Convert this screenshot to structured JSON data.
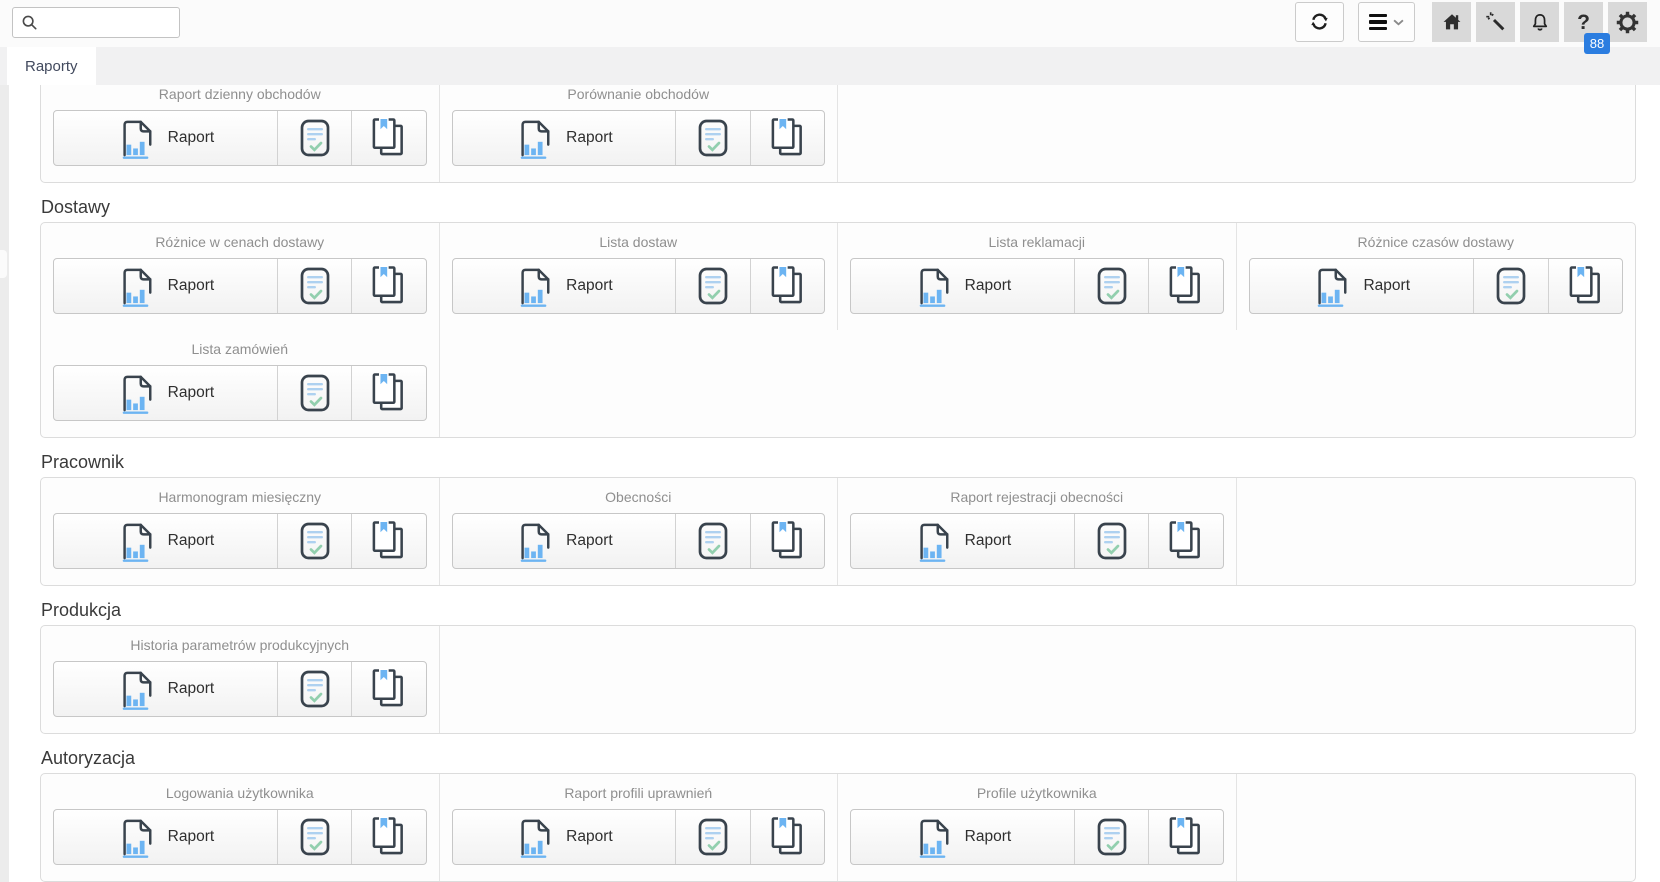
{
  "topbar": {
    "search_placeholder": "",
    "search_value": "",
    "help_badge": "88",
    "buttons": [
      {
        "name": "refresh",
        "icon": "refresh-icon"
      },
      {
        "name": "menu",
        "icon": "hamburger-icon",
        "secondary_icon": "chevron-down-icon"
      },
      {
        "name": "home",
        "icon": "home-icon"
      },
      {
        "name": "magic-wand",
        "icon": "magic-wand-icon"
      },
      {
        "name": "notifications",
        "icon": "bell-icon"
      },
      {
        "name": "help",
        "icon": "question-mark-icon",
        "badge": "88"
      },
      {
        "name": "settings",
        "icon": "gear-icon"
      }
    ]
  },
  "tabbar": {
    "tabs": [
      {
        "label": "Raporty",
        "active": true
      }
    ]
  },
  "labels": {
    "report_button": "Raport"
  },
  "card_icons": {
    "report": "report-chart-icon",
    "checklist": "document-checklist-icon",
    "copies": "document-copies-icon"
  },
  "colors": {
    "accent_blue": "#6cb4f2",
    "badge_blue": "#2b7de0",
    "icon_dark": "#39434d",
    "line_light_blue": "#aed1f0",
    "check_green": "#92cfae"
  },
  "sections": [
    {
      "heading": "",
      "rows": [
        [
          {
            "title": "Raport dzienny obchodów"
          },
          {
            "title": "Porównanie obchodów"
          }
        ]
      ]
    },
    {
      "heading": "Dostawy",
      "rows": [
        [
          {
            "title": "Różnice w cenach dostawy"
          },
          {
            "title": "Lista dostaw"
          },
          {
            "title": "Lista reklamacji"
          },
          {
            "title": "Różnice czasów dostawy"
          }
        ],
        [
          {
            "title": "Lista zamówień"
          }
        ]
      ]
    },
    {
      "heading": "Pracownik",
      "rows": [
        [
          {
            "title": "Harmonogram miesięczny"
          },
          {
            "title": "Obecności"
          },
          {
            "title": "Raport rejestracji obecności"
          }
        ]
      ]
    },
    {
      "heading": "Produkcja",
      "rows": [
        [
          {
            "title": "Historia parametrów produkcyjnych"
          }
        ]
      ]
    },
    {
      "heading": "Autoryzacja",
      "rows": [
        [
          {
            "title": "Logowania użytkownika"
          },
          {
            "title": "Raport profili uprawnień"
          },
          {
            "title": "Profile użytkownika"
          }
        ]
      ]
    }
  ]
}
